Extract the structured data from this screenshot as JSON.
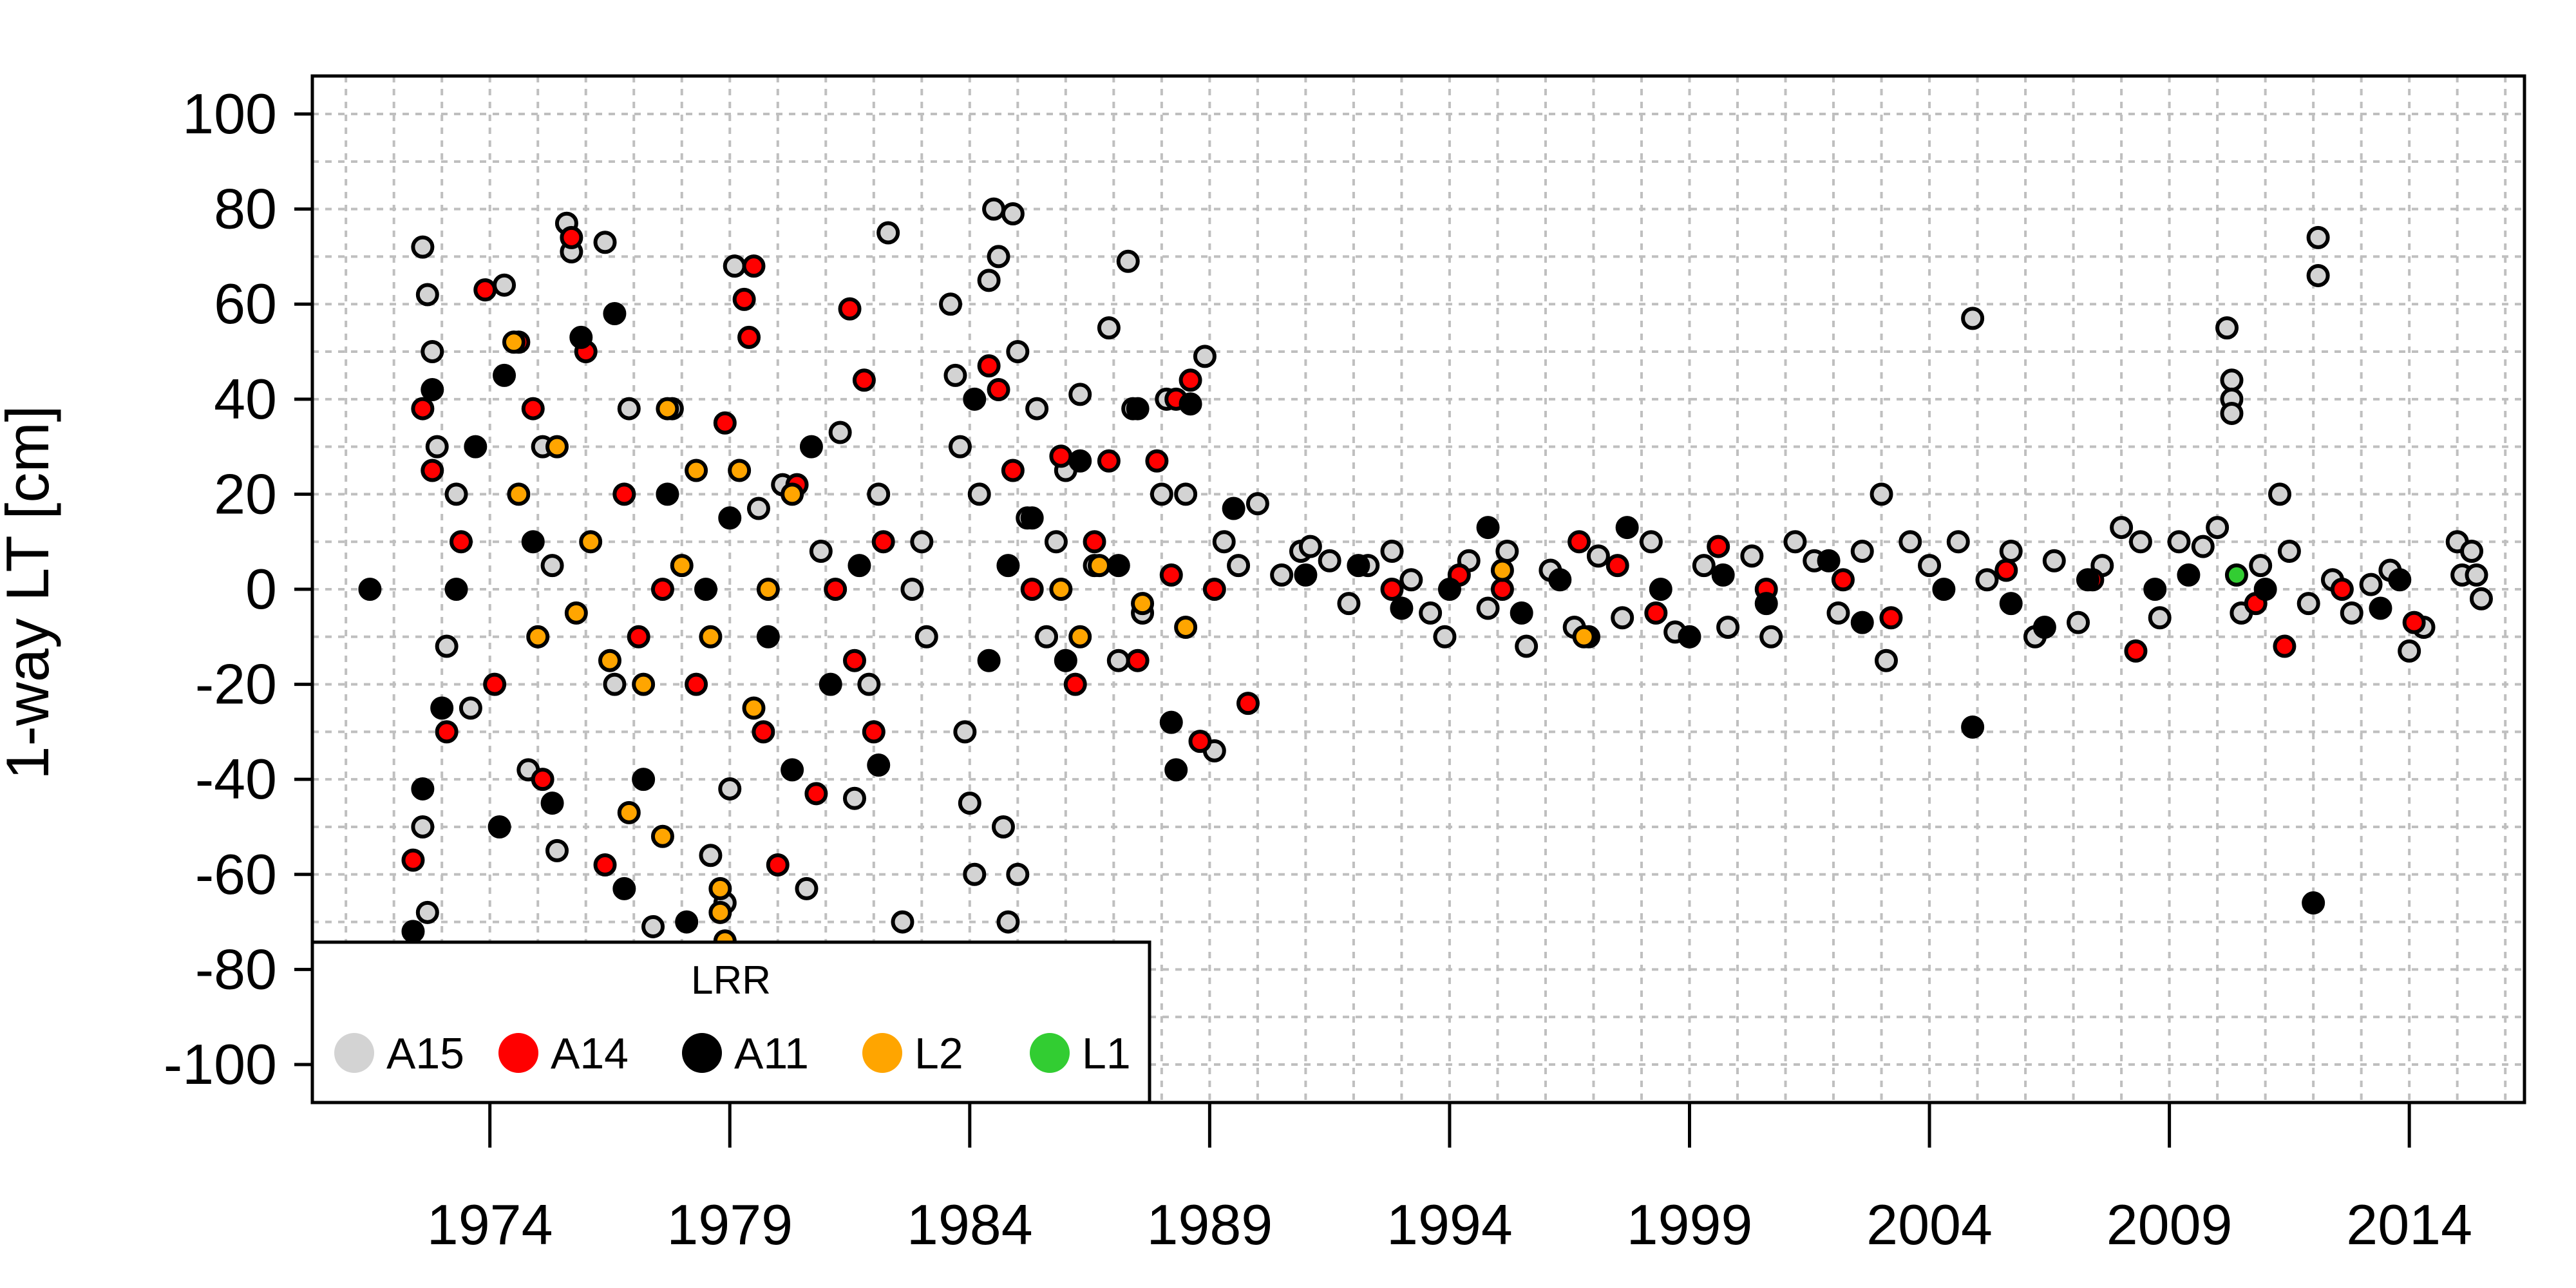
{
  "chart_data": {
    "type": "scatter",
    "title": "",
    "xlabel": "",
    "ylabel": "1-way LT [cm]",
    "xlim": [
      1970.3,
      2016.4
    ],
    "ylim": [
      -108,
      108
    ],
    "grid": true,
    "x_ticks": [
      1974,
      1979,
      1984,
      1989,
      1994,
      1999,
      2004,
      2009,
      2014
    ],
    "x_tick_labels": [
      "1974",
      "1979",
      "1984",
      "1989",
      "1994",
      "1999",
      "2004",
      "2009",
      "2014"
    ],
    "y_ticks": [
      100,
      80,
      60,
      40,
      20,
      0,
      -20,
      -40,
      -60,
      -80,
      -100
    ],
    "y_tick_labels": [
      "100",
      "80",
      "60",
      "40",
      "20",
      "0",
      "-20",
      "-40",
      "-60",
      "-80",
      "-100"
    ],
    "legend": {
      "title": "LRR",
      "position": "bottom-left",
      "entries": [
        {
          "name": "A15",
          "color": "#d3d3d3"
        },
        {
          "name": "A14",
          "color": "#ff0000"
        },
        {
          "name": "A11",
          "color": "#000000"
        },
        {
          "name": "L2",
          "color": "#ffa500"
        },
        {
          "name": "L1",
          "color": "#32cd32"
        }
      ]
    },
    "series": [
      {
        "name": "A15",
        "color": "#d3d3d3",
        "points": [
          [
            1972.6,
            72
          ],
          [
            1972.7,
            62
          ],
          [
            1972.8,
            50
          ],
          [
            1972.6,
            -50
          ],
          [
            1972.7,
            -68
          ],
          [
            1972.9,
            30
          ],
          [
            1973.1,
            -12
          ],
          [
            1973.3,
            20
          ],
          [
            1973.6,
            -25
          ],
          [
            1974.3,
            64
          ],
          [
            1974.8,
            -38
          ],
          [
            1975.1,
            30
          ],
          [
            1975.3,
            5
          ],
          [
            1975.6,
            77
          ],
          [
            1975.7,
            71
          ],
          [
            1975.4,
            -55
          ],
          [
            1976.4,
            73
          ],
          [
            1976.9,
            38
          ],
          [
            1976.6,
            -20
          ],
          [
            1977.4,
            -71
          ],
          [
            1977.8,
            38
          ],
          [
            1978.6,
            -56
          ],
          [
            1978.9,
            -66
          ],
          [
            1979.1,
            68
          ],
          [
            1979.0,
            -42
          ],
          [
            1979.6,
            17
          ],
          [
            1980.1,
            22
          ],
          [
            1980.6,
            -63
          ],
          [
            1980.9,
            8
          ],
          [
            1981.3,
            33
          ],
          [
            1981.6,
            -44
          ],
          [
            1981.9,
            -20
          ],
          [
            1982.1,
            20
          ],
          [
            1982.3,
            75
          ],
          [
            1982.6,
            -70
          ],
          [
            1982.8,
            0
          ],
          [
            1983.0,
            10
          ],
          [
            1983.1,
            -10
          ],
          [
            1983.6,
            60
          ],
          [
            1983.7,
            45
          ],
          [
            1983.8,
            30
          ],
          [
            1983.9,
            -30
          ],
          [
            1984.0,
            -45
          ],
          [
            1984.1,
            -60
          ],
          [
            1984.2,
            20
          ],
          [
            1984.4,
            65
          ],
          [
            1984.5,
            80
          ],
          [
            1984.6,
            70
          ],
          [
            1984.7,
            -50
          ],
          [
            1984.8,
            -70
          ],
          [
            1984.9,
            79
          ],
          [
            1985.0,
            -60
          ],
          [
            1985.0,
            50
          ],
          [
            1985.2,
            15
          ],
          [
            1985.4,
            38
          ],
          [
            1985.6,
            -10
          ],
          [
            1985.8,
            10
          ],
          [
            1986.0,
            25
          ],
          [
            1986.3,
            41
          ],
          [
            1986.6,
            5
          ],
          [
            1986.9,
            55
          ],
          [
            1987.1,
            -15
          ],
          [
            1987.3,
            69
          ],
          [
            1987.4,
            38
          ],
          [
            1987.6,
            -5
          ],
          [
            1988.0,
            20
          ],
          [
            1988.1,
            40
          ],
          [
            1988.5,
            20
          ],
          [
            1988.9,
            49
          ],
          [
            1989.1,
            -34
          ],
          [
            1989.3,
            10
          ],
          [
            1989.6,
            5
          ],
          [
            1990.0,
            18
          ],
          [
            1990.5,
            3
          ],
          [
            1990.9,
            8
          ],
          [
            1991.1,
            9
          ],
          [
            1991.5,
            6
          ],
          [
            1991.9,
            -3
          ],
          [
            1992.3,
            5
          ],
          [
            1992.8,
            8
          ],
          [
            1993.2,
            2
          ],
          [
            1993.6,
            -5
          ],
          [
            1993.9,
            -10
          ],
          [
            1994.4,
            6
          ],
          [
            1994.8,
            -4
          ],
          [
            1995.2,
            8
          ],
          [
            1995.6,
            -12
          ],
          [
            1996.1,
            4
          ],
          [
            1996.6,
            -8
          ],
          [
            1997.1,
            7
          ],
          [
            1997.6,
            -6
          ],
          [
            1998.2,
            10
          ],
          [
            1998.7,
            -9
          ],
          [
            1999.3,
            5
          ],
          [
            1999.8,
            -8
          ],
          [
            2000.3,
            7
          ],
          [
            2000.7,
            -10
          ],
          [
            2001.2,
            10
          ],
          [
            2001.6,
            6
          ],
          [
            2002.1,
            -5
          ],
          [
            2002.6,
            8
          ],
          [
            2003.0,
            20
          ],
          [
            2003.1,
            -15
          ],
          [
            2003.6,
            10
          ],
          [
            2004.0,
            5
          ],
          [
            2004.6,
            10
          ],
          [
            2004.9,
            57
          ],
          [
            2005.2,
            2
          ],
          [
            2005.7,
            8
          ],
          [
            2006.2,
            -10
          ],
          [
            2006.6,
            6
          ],
          [
            2007.1,
            -7
          ],
          [
            2007.6,
            5
          ],
          [
            2008.0,
            13
          ],
          [
            2008.4,
            10
          ],
          [
            2008.8,
            -6
          ],
          [
            2009.2,
            10
          ],
          [
            2009.7,
            9
          ],
          [
            2010.0,
            13
          ],
          [
            2010.2,
            55
          ],
          [
            2010.3,
            44
          ],
          [
            2010.3,
            40
          ],
          [
            2010.3,
            37
          ],
          [
            2010.5,
            -5
          ],
          [
            2010.9,
            5
          ],
          [
            2011.3,
            20
          ],
          [
            2011.5,
            8
          ],
          [
            2011.9,
            -3
          ],
          [
            2012.1,
            74
          ],
          [
            2012.1,
            66
          ],
          [
            2012.4,
            2
          ],
          [
            2012.8,
            -5
          ],
          [
            2013.2,
            1
          ],
          [
            2013.6,
            4
          ],
          [
            2014.0,
            -13
          ],
          [
            2014.3,
            -8
          ],
          [
            2015.0,
            10
          ],
          [
            2015.1,
            3
          ],
          [
            2015.3,
            8
          ],
          [
            2015.4,
            3
          ],
          [
            2015.5,
            -2
          ]
        ]
      },
      {
        "name": "A14",
        "color": "#ff0000",
        "points": [
          [
            1972.4,
            -57
          ],
          [
            1972.6,
            38
          ],
          [
            1972.8,
            25
          ],
          [
            1973.1,
            -30
          ],
          [
            1973.4,
            10
          ],
          [
            1973.9,
            63
          ],
          [
            1974.1,
            -20
          ],
          [
            1974.6,
            52
          ],
          [
            1974.9,
            38
          ],
          [
            1975.1,
            -40
          ],
          [
            1975.7,
            74
          ],
          [
            1976.0,
            50
          ],
          [
            1976.4,
            -58
          ],
          [
            1976.8,
            20
          ],
          [
            1977.1,
            -10
          ],
          [
            1977.6,
            0
          ],
          [
            1978.3,
            -20
          ],
          [
            1978.9,
            35
          ],
          [
            1979.3,
            61
          ],
          [
            1979.5,
            68
          ],
          [
            1979.4,
            53
          ],
          [
            1979.7,
            -30
          ],
          [
            1980.0,
            -58
          ],
          [
            1980.4,
            22
          ],
          [
            1980.8,
            -43
          ],
          [
            1981.2,
            0
          ],
          [
            1981.5,
            59
          ],
          [
            1981.6,
            -15
          ],
          [
            1981.8,
            44
          ],
          [
            1982.0,
            -30
          ],
          [
            1982.2,
            10
          ],
          [
            1984.4,
            47
          ],
          [
            1984.6,
            42
          ],
          [
            1984.9,
            25
          ],
          [
            1985.3,
            0
          ],
          [
            1985.9,
            28
          ],
          [
            1986.2,
            -20
          ],
          [
            1986.6,
            10
          ],
          [
            1986.9,
            27
          ],
          [
            1987.5,
            -15
          ],
          [
            1987.9,
            27
          ],
          [
            1988.2,
            3
          ],
          [
            1988.3,
            40
          ],
          [
            1988.6,
            44
          ],
          [
            1988.8,
            -32
          ],
          [
            1989.1,
            0
          ],
          [
            1989.8,
            -24
          ],
          [
            1992.8,
            0
          ],
          [
            1994.2,
            3
          ],
          [
            1995.1,
            0
          ],
          [
            1996.7,
            10
          ],
          [
            1997.5,
            5
          ],
          [
            1998.3,
            -5
          ],
          [
            1999.6,
            9
          ],
          [
            2000.6,
            0
          ],
          [
            2002.2,
            2
          ],
          [
            2003.2,
            -6
          ],
          [
            2005.6,
            4
          ],
          [
            2007.4,
            2
          ],
          [
            2008.3,
            -13
          ],
          [
            2010.8,
            -3
          ],
          [
            2011.4,
            -12
          ],
          [
            2012.6,
            0
          ],
          [
            2014.1,
            -7
          ]
        ]
      },
      {
        "name": "A11",
        "color": "#000000",
        "points": [
          [
            1971.5,
            0
          ],
          [
            1972.4,
            -72
          ],
          [
            1972.6,
            -42
          ],
          [
            1972.8,
            42
          ],
          [
            1973.0,
            -25
          ],
          [
            1973.3,
            0
          ],
          [
            1973.7,
            30
          ],
          [
            1974.3,
            45
          ],
          [
            1974.2,
            -50
          ],
          [
            1974.9,
            10
          ],
          [
            1975.3,
            -45
          ],
          [
            1975.9,
            53
          ],
          [
            1976.6,
            58
          ],
          [
            1976.8,
            -63
          ],
          [
            1977.2,
            -40
          ],
          [
            1977.7,
            20
          ],
          [
            1978.1,
            -70
          ],
          [
            1978.5,
            0
          ],
          [
            1979.0,
            15
          ],
          [
            1979.8,
            -10
          ],
          [
            1980.3,
            -38
          ],
          [
            1980.7,
            30
          ],
          [
            1981.1,
            -20
          ],
          [
            1981.7,
            5
          ],
          [
            1982.1,
            -37
          ],
          [
            1984.1,
            40
          ],
          [
            1984.4,
            -15
          ],
          [
            1984.8,
            5
          ],
          [
            1985.3,
            15
          ],
          [
            1986.0,
            -15
          ],
          [
            1986.3,
            27
          ],
          [
            1987.1,
            5
          ],
          [
            1987.5,
            38
          ],
          [
            1988.2,
            -28
          ],
          [
            1988.3,
            -38
          ],
          [
            1988.6,
            39
          ],
          [
            1989.5,
            17
          ],
          [
            1991.0,
            3
          ],
          [
            1992.1,
            5
          ],
          [
            1993.0,
            -4
          ],
          [
            1994.0,
            0
          ],
          [
            1994.8,
            13
          ],
          [
            1995.5,
            -5
          ],
          [
            1996.3,
            2
          ],
          [
            1996.9,
            -10
          ],
          [
            1997.7,
            13
          ],
          [
            1998.4,
            0
          ],
          [
            1999.0,
            -10
          ],
          [
            1999.7,
            3
          ],
          [
            2000.6,
            -3
          ],
          [
            2001.9,
            6
          ],
          [
            2002.6,
            -7
          ],
          [
            2004.3,
            0
          ],
          [
            2004.9,
            -29
          ],
          [
            2005.7,
            -3
          ],
          [
            2006.4,
            -8
          ],
          [
            2007.3,
            2
          ],
          [
            2008.7,
            0
          ],
          [
            2009.4,
            3
          ],
          [
            2011.0,
            0
          ],
          [
            2012.0,
            -66
          ],
          [
            2013.4,
            -4
          ],
          [
            2013.8,
            2
          ]
        ]
      },
      {
        "name": "L2",
        "color": "#ffa500",
        "points": [
          [
            1974.5,
            52
          ],
          [
            1974.6,
            20
          ],
          [
            1975.0,
            -10
          ],
          [
            1975.4,
            30
          ],
          [
            1975.8,
            -5
          ],
          [
            1976.1,
            10
          ],
          [
            1976.5,
            -15
          ],
          [
            1976.9,
            -47
          ],
          [
            1977.2,
            -20
          ],
          [
            1977.6,
            -52
          ],
          [
            1977.7,
            38
          ],
          [
            1978.0,
            5
          ],
          [
            1978.3,
            25
          ],
          [
            1978.6,
            -10
          ],
          [
            1978.8,
            -63
          ],
          [
            1978.8,
            -68
          ],
          [
            1978.9,
            -74
          ],
          [
            1979.2,
            25
          ],
          [
            1979.5,
            -25
          ],
          [
            1979.8,
            0
          ],
          [
            1980.3,
            20
          ],
          [
            1985.9,
            0
          ],
          [
            1986.3,
            -10
          ],
          [
            1986.7,
            5
          ],
          [
            1987.6,
            -3
          ],
          [
            1988.5,
            -8
          ],
          [
            1995.1,
            4
          ],
          [
            1996.8,
            -10
          ]
        ]
      },
      {
        "name": "L1",
        "color": "#32cd32",
        "points": [
          [
            2010.4,
            3
          ]
        ]
      }
    ]
  }
}
